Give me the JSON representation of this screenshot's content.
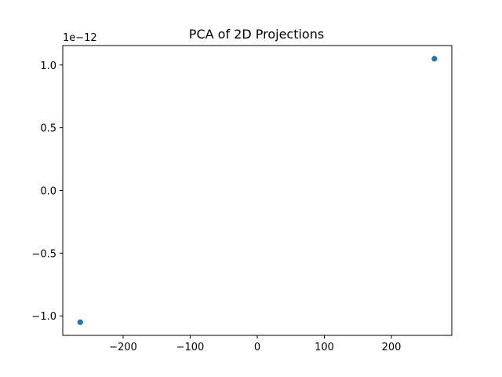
{
  "chart_data": {
    "type": "scatter",
    "title": "PCA of 2D Projections",
    "xlabel": "",
    "ylabel": "",
    "xlim": [
      -290,
      290
    ],
    "ylim": [
      -1.155,
      1.155
    ],
    "y_offset_label": "1e−12",
    "x_ticks": [
      {
        "value": -200,
        "label": "−200"
      },
      {
        "value": -100,
        "label": "−100"
      },
      {
        "value": 0,
        "label": "0"
      },
      {
        "value": 100,
        "label": "100"
      },
      {
        "value": 200,
        "label": "200"
      }
    ],
    "y_ticks": [
      {
        "value": -1.0,
        "label": "−1.0"
      },
      {
        "value": -0.5,
        "label": "−0.5"
      },
      {
        "value": 0.0,
        "label": "0.0"
      },
      {
        "value": 0.5,
        "label": "0.5"
      },
      {
        "value": 1.0,
        "label": "1.0"
      }
    ],
    "points": [
      {
        "x": -264,
        "y": -1.05
      },
      {
        "x": 264,
        "y": 1.05
      }
    ],
    "marker_color": "#1f77b4",
    "grid": false
  }
}
